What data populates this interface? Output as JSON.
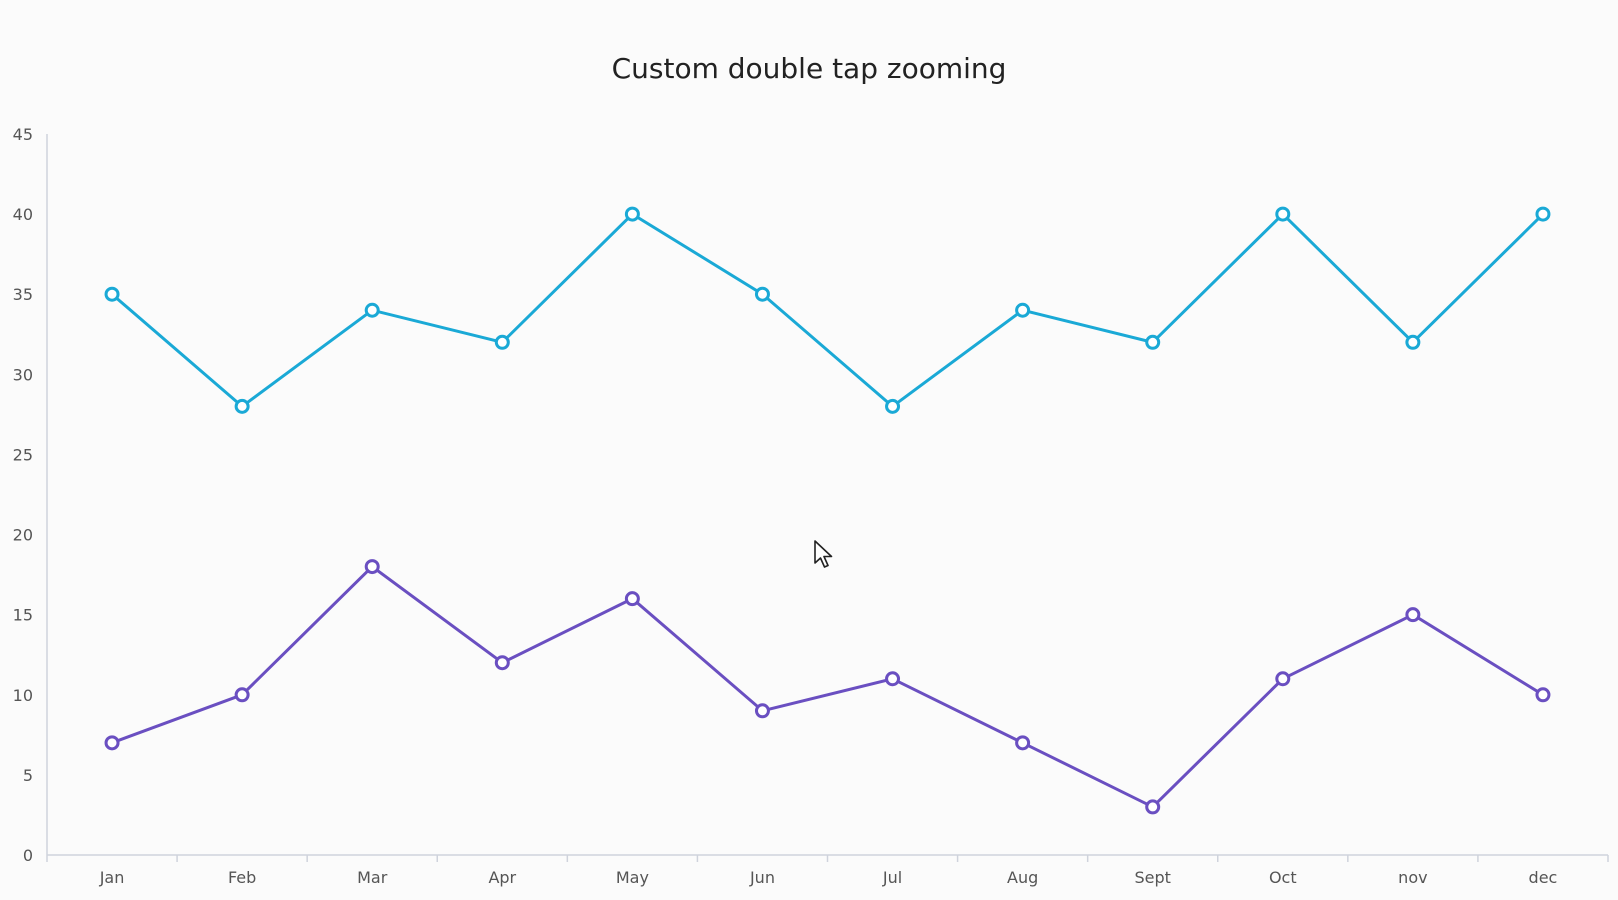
{
  "chart_data": {
    "type": "line",
    "title": "Custom double tap zooming",
    "xlabel": "",
    "ylabel": "",
    "categories": [
      "Jan",
      "Feb",
      "Mar",
      "Apr",
      "May",
      "Jun",
      "Jul",
      "Aug",
      "Sept",
      "Oct",
      "nov",
      "dec"
    ],
    "ylim": [
      0,
      45
    ],
    "yticks": [
      0,
      5,
      10,
      15,
      20,
      25,
      30,
      35,
      40,
      45
    ],
    "grid": false,
    "series": [
      {
        "color": "#1aa9d6",
        "values": [
          35,
          28,
          34,
          32,
          40,
          35,
          28,
          34,
          32,
          40,
          32,
          40
        ]
      },
      {
        "color": "#6a4fc1",
        "values": [
          7,
          10,
          18,
          12,
          16,
          9,
          11,
          7,
          3,
          11,
          15,
          10
        ]
      }
    ]
  },
  "colors": {
    "background": "#fbfbfb",
    "axis": "#cfd3dc",
    "tick_label": "#555555",
    "title": "#222222"
  },
  "icons": {
    "cursor": "mouse-pointer-icon"
  }
}
